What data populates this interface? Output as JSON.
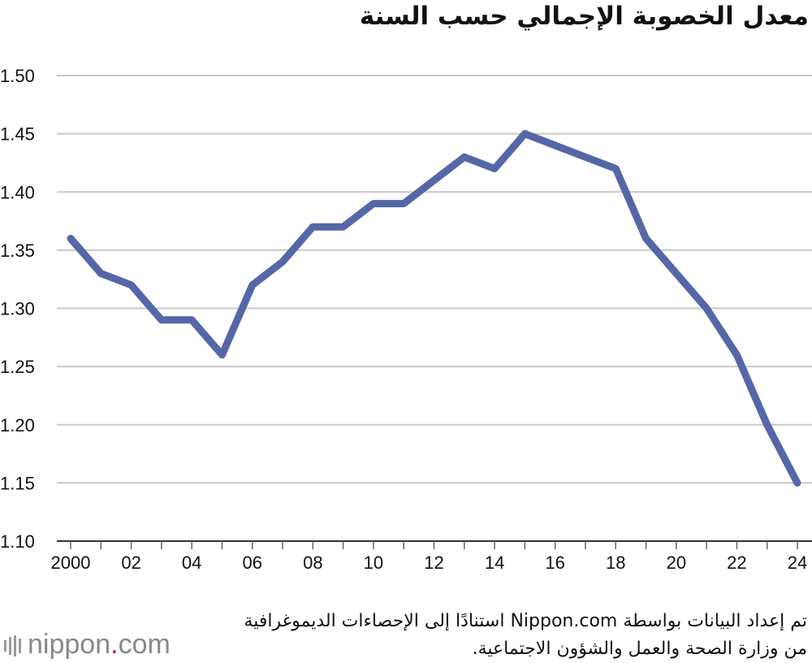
{
  "title": "معدل الخصوبة الإجمالي حسب السنة",
  "source": {
    "line1": "تم إعداد البيانات بواسطة Nippon.com استنادًا إلى الإحصاءات الديموغرافية",
    "line2": "من وزارة الصحة والعمل والشؤون الاجتماعية."
  },
  "logo": {
    "text_main": "nippon",
    "text_dot": ".",
    "text_com": "com"
  },
  "colors": {
    "line": "#5567a6",
    "grid": "#c8c8c8",
    "axis": "#333333",
    "logo_dot": "#c8102e"
  },
  "chart_data": {
    "type": "line",
    "x": [
      2000,
      2001,
      2002,
      2003,
      2004,
      2005,
      2006,
      2007,
      2008,
      2009,
      2010,
      2011,
      2012,
      2013,
      2014,
      2015,
      2016,
      2017,
      2018,
      2019,
      2020,
      2021,
      2022,
      2023,
      2024
    ],
    "values": [
      1.36,
      1.33,
      1.32,
      1.29,
      1.29,
      1.26,
      1.32,
      1.34,
      1.37,
      1.37,
      1.39,
      1.39,
      1.41,
      1.43,
      1.42,
      1.45,
      1.44,
      1.43,
      1.42,
      1.36,
      1.33,
      1.3,
      1.26,
      1.2,
      1.15
    ],
    "ylim": [
      1.1,
      1.5
    ],
    "yticks": [
      "1.10",
      "1.15",
      "1.20",
      "1.25",
      "1.30",
      "1.35",
      "1.40",
      "1.45",
      "1.50"
    ],
    "xtick_labels": [
      {
        "x": 2000,
        "label": "2000"
      },
      {
        "x": 2002,
        "label": "02"
      },
      {
        "x": 2004,
        "label": "04"
      },
      {
        "x": 2006,
        "label": "06"
      },
      {
        "x": 2008,
        "label": "08"
      },
      {
        "x": 2010,
        "label": "10"
      },
      {
        "x": 2012,
        "label": "12"
      },
      {
        "x": 2014,
        "label": "14"
      },
      {
        "x": 2016,
        "label": "16"
      },
      {
        "x": 2018,
        "label": "18"
      },
      {
        "x": 2020,
        "label": "20"
      },
      {
        "x": 2022,
        "label": "22"
      },
      {
        "x": 2024,
        "label": "24"
      }
    ],
    "grid": true,
    "legend": "none"
  }
}
